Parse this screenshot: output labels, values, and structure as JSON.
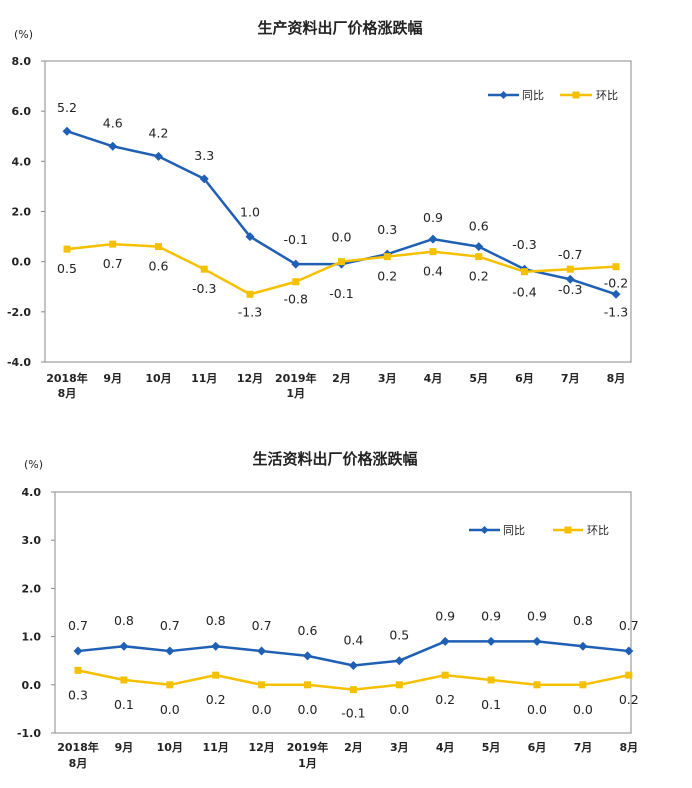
{
  "chart_data": [
    {
      "type": "line",
      "title": "生产资料出厂价格涨跌幅",
      "unit": "(%)",
      "categories": [
        [
          "2018年",
          "8月"
        ],
        [
          "9月"
        ],
        [
          "10月"
        ],
        [
          "11月"
        ],
        [
          "12月"
        ],
        [
          "2019年",
          "1月"
        ],
        [
          "2月"
        ],
        [
          "3月"
        ],
        [
          "4月"
        ],
        [
          "5月"
        ],
        [
          "6月"
        ],
        [
          "7月"
        ],
        [
          "8月"
        ]
      ],
      "ylim": [
        -4.0,
        8.0
      ],
      "yticks": [
        "8.0",
        "6.0",
        "4.0",
        "2.0",
        "0.0",
        "-2.0",
        "-4.0"
      ],
      "legend_position": "top-right",
      "series": [
        {
          "name": "同比",
          "color": "#1f5fb4",
          "marker": "diamond",
          "values": [
            5.2,
            4.6,
            4.2,
            3.3,
            1.0,
            -0.1,
            -0.1,
            0.3,
            0.9,
            0.6,
            -0.3,
            -0.7,
            -1.3
          ],
          "labels": [
            "5.2",
            "4.6",
            "4.2",
            "3.3",
            "1.0",
            "-0.1",
            "-0.1",
            "0.3",
            "0.9",
            "0.6",
            "-0.3",
            "-0.7",
            "-1.3"
          ]
        },
        {
          "name": "环比",
          "color": "#f5c000",
          "marker": "square",
          "values": [
            0.5,
            0.7,
            0.6,
            -0.3,
            -1.3,
            -0.8,
            0.0,
            0.2,
            0.4,
            0.2,
            -0.4,
            -0.3,
            -0.2
          ],
          "labels": [
            "0.5",
            "0.7",
            "0.6",
            "-0.3",
            "-1.3",
            "-0.8",
            "0.0",
            "0.2",
            "0.4",
            "0.2",
            "-0.4",
            "-0.3",
            "-0.2"
          ]
        }
      ]
    },
    {
      "type": "line",
      "title": "生活资料出厂价格涨跌幅",
      "unit": "(%)",
      "categories": [
        [
          "2018年",
          "8月"
        ],
        [
          "9月"
        ],
        [
          "10月"
        ],
        [
          "11月"
        ],
        [
          "12月"
        ],
        [
          "2019年",
          "1月"
        ],
        [
          "2月"
        ],
        [
          "3月"
        ],
        [
          "4月"
        ],
        [
          "5月"
        ],
        [
          "6月"
        ],
        [
          "7月"
        ],
        [
          "8月"
        ]
      ],
      "ylim": [
        -1.0,
        4.0
      ],
      "yticks": [
        "4.0",
        "3.0",
        "2.0",
        "1.0",
        "0.0",
        "-1.0"
      ],
      "legend_position": "top-right",
      "series": [
        {
          "name": "同比",
          "color": "#1f5fb4",
          "marker": "diamond",
          "values": [
            0.7,
            0.8,
            0.7,
            0.8,
            0.7,
            0.6,
            0.4,
            0.5,
            0.9,
            0.9,
            0.9,
            0.8,
            0.7
          ],
          "labels": [
            "0.7",
            "0.8",
            "0.7",
            "0.8",
            "0.7",
            "0.6",
            "0.4",
            "0.5",
            "0.9",
            "0.9",
            "0.9",
            "0.8",
            "0.7"
          ]
        },
        {
          "name": "环比",
          "color": "#f5c000",
          "marker": "square",
          "values": [
            0.3,
            0.1,
            0.0,
            0.2,
            0.0,
            0.0,
            -0.1,
            0.0,
            0.2,
            0.1,
            0.0,
            0.0,
            0.2
          ],
          "labels": [
            "0.3",
            "0.1",
            "0.0",
            "0.2",
            "0.0",
            "0.0",
            "-0.1",
            "0.0",
            "0.2",
            "0.1",
            "0.0",
            "0.0",
            "0.2"
          ]
        }
      ]
    }
  ]
}
